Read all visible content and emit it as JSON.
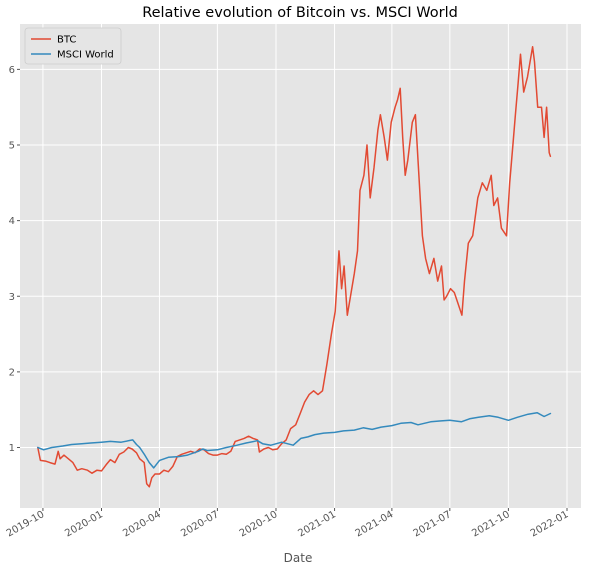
{
  "chart_data": {
    "type": "line",
    "title": "Relative evolution of Bitcoin vs. MSCI World",
    "xlabel": "Date",
    "ylabel": "",
    "x_type": "date",
    "xlim": [
      "2019-08-26",
      "2022-01-23"
    ],
    "ylim": [
      0.2,
      6.6
    ],
    "grid": true,
    "legend_position": "top-left",
    "x_ticks": [
      {
        "date": "2019-10-01",
        "label": "2019-10"
      },
      {
        "date": "2020-01-01",
        "label": "2020-01"
      },
      {
        "date": "2020-04-01",
        "label": "2020-04"
      },
      {
        "date": "2020-07-01",
        "label": "2020-07"
      },
      {
        "date": "2020-10-01",
        "label": "2020-10"
      },
      {
        "date": "2021-01-01",
        "label": "2021-01"
      },
      {
        "date": "2021-04-01",
        "label": "2021-04"
      },
      {
        "date": "2021-07-01",
        "label": "2021-07"
      },
      {
        "date": "2021-10-01",
        "label": "2021-10"
      },
      {
        "date": "2022-01-01",
        "label": "2022-01"
      }
    ],
    "y_ticks": [
      1,
      2,
      3,
      4,
      5,
      6
    ],
    "series": [
      {
        "name": "BTC",
        "color": "#E24A33",
        "points": [
          [
            "2019-09-23",
            1.0
          ],
          [
            "2019-09-27",
            0.83
          ],
          [
            "2019-10-05",
            0.82
          ],
          [
            "2019-10-12",
            0.8
          ],
          [
            "2019-10-20",
            0.78
          ],
          [
            "2019-10-25",
            0.95
          ],
          [
            "2019-10-28",
            0.85
          ],
          [
            "2019-11-03",
            0.9
          ],
          [
            "2019-11-10",
            0.85
          ],
          [
            "2019-11-17",
            0.8
          ],
          [
            "2019-11-24",
            0.7
          ],
          [
            "2019-12-01",
            0.72
          ],
          [
            "2019-12-10",
            0.7
          ],
          [
            "2019-12-17",
            0.66
          ],
          [
            "2019-12-25",
            0.7
          ],
          [
            "2020-01-01",
            0.69
          ],
          [
            "2020-01-08",
            0.77
          ],
          [
            "2020-01-15",
            0.84
          ],
          [
            "2020-01-22",
            0.8
          ],
          [
            "2020-01-29",
            0.91
          ],
          [
            "2020-02-05",
            0.94
          ],
          [
            "2020-02-12",
            1.0
          ],
          [
            "2020-02-18",
            0.98
          ],
          [
            "2020-02-25",
            0.93
          ],
          [
            "2020-03-01",
            0.85
          ],
          [
            "2020-03-08",
            0.8
          ],
          [
            "2020-03-12",
            0.52
          ],
          [
            "2020-03-16",
            0.48
          ],
          [
            "2020-03-20",
            0.6
          ],
          [
            "2020-03-25",
            0.65
          ],
          [
            "2020-04-01",
            0.65
          ],
          [
            "2020-04-08",
            0.7
          ],
          [
            "2020-04-15",
            0.68
          ],
          [
            "2020-04-22",
            0.75
          ],
          [
            "2020-04-29",
            0.88
          ],
          [
            "2020-05-06",
            0.91
          ],
          [
            "2020-05-13",
            0.93
          ],
          [
            "2020-05-20",
            0.95
          ],
          [
            "2020-05-27",
            0.93
          ],
          [
            "2020-06-03",
            0.98
          ],
          [
            "2020-06-10",
            0.97
          ],
          [
            "2020-06-17",
            0.92
          ],
          [
            "2020-06-24",
            0.9
          ],
          [
            "2020-07-01",
            0.9
          ],
          [
            "2020-07-08",
            0.92
          ],
          [
            "2020-07-15",
            0.91
          ],
          [
            "2020-07-22",
            0.95
          ],
          [
            "2020-07-29",
            1.08
          ],
          [
            "2020-08-05",
            1.1
          ],
          [
            "2020-08-12",
            1.12
          ],
          [
            "2020-08-19",
            1.15
          ],
          [
            "2020-08-26",
            1.12
          ],
          [
            "2020-09-02",
            1.1
          ],
          [
            "2020-09-05",
            0.94
          ],
          [
            "2020-09-12",
            0.98
          ],
          [
            "2020-09-19",
            1.0
          ],
          [
            "2020-09-26",
            0.97
          ],
          [
            "2020-10-03",
            0.98
          ],
          [
            "2020-10-10",
            1.05
          ],
          [
            "2020-10-17",
            1.1
          ],
          [
            "2020-10-24",
            1.25
          ],
          [
            "2020-11-01",
            1.3
          ],
          [
            "2020-11-08",
            1.45
          ],
          [
            "2020-11-15",
            1.6
          ],
          [
            "2020-11-22",
            1.7
          ],
          [
            "2020-11-29",
            1.75
          ],
          [
            "2020-12-06",
            1.7
          ],
          [
            "2020-12-13",
            1.75
          ],
          [
            "2020-12-20",
            2.1
          ],
          [
            "2020-12-27",
            2.5
          ],
          [
            "2021-01-02",
            2.8
          ],
          [
            "2021-01-08",
            3.6
          ],
          [
            "2021-01-12",
            3.1
          ],
          [
            "2021-01-16",
            3.4
          ],
          [
            "2021-01-21",
            2.75
          ],
          [
            "2021-01-26",
            3.0
          ],
          [
            "2021-02-01",
            3.3
          ],
          [
            "2021-02-06",
            3.6
          ],
          [
            "2021-02-10",
            4.4
          ],
          [
            "2021-02-16",
            4.6
          ],
          [
            "2021-02-21",
            5.0
          ],
          [
            "2021-02-26",
            4.3
          ],
          [
            "2021-03-04",
            4.7
          ],
          [
            "2021-03-10",
            5.2
          ],
          [
            "2021-03-14",
            5.4
          ],
          [
            "2021-03-20",
            5.1
          ],
          [
            "2021-03-25",
            4.8
          ],
          [
            "2021-03-31",
            5.3
          ],
          [
            "2021-04-06",
            5.5
          ],
          [
            "2021-04-10",
            5.6
          ],
          [
            "2021-04-14",
            5.75
          ],
          [
            "2021-04-18",
            5.1
          ],
          [
            "2021-04-22",
            4.6
          ],
          [
            "2021-04-26",
            4.8
          ],
          [
            "2021-05-03",
            5.3
          ],
          [
            "2021-05-08",
            5.4
          ],
          [
            "2021-05-12",
            4.8
          ],
          [
            "2021-05-19",
            3.8
          ],
          [
            "2021-05-24",
            3.5
          ],
          [
            "2021-05-30",
            3.3
          ],
          [
            "2021-06-06",
            3.5
          ],
          [
            "2021-06-12",
            3.2
          ],
          [
            "2021-06-18",
            3.4
          ],
          [
            "2021-06-22",
            2.95
          ],
          [
            "2021-06-26",
            3.0
          ],
          [
            "2021-07-02",
            3.1
          ],
          [
            "2021-07-08",
            3.05
          ],
          [
            "2021-07-14",
            2.9
          ],
          [
            "2021-07-20",
            2.75
          ],
          [
            "2021-07-24",
            3.2
          ],
          [
            "2021-07-30",
            3.7
          ],
          [
            "2021-08-06",
            3.8
          ],
          [
            "2021-08-14",
            4.3
          ],
          [
            "2021-08-21",
            4.5
          ],
          [
            "2021-08-28",
            4.4
          ],
          [
            "2021-09-04",
            4.6
          ],
          [
            "2021-09-08",
            4.2
          ],
          [
            "2021-09-14",
            4.3
          ],
          [
            "2021-09-20",
            3.9
          ],
          [
            "2021-09-28",
            3.8
          ],
          [
            "2021-10-03",
            4.5
          ],
          [
            "2021-10-08",
            5.0
          ],
          [
            "2021-10-12",
            5.4
          ],
          [
            "2021-10-16",
            5.8
          ],
          [
            "2021-10-20",
            6.2
          ],
          [
            "2021-10-25",
            5.7
          ],
          [
            "2021-10-31",
            5.9
          ],
          [
            "2021-11-08",
            6.3
          ],
          [
            "2021-11-11",
            6.1
          ],
          [
            "2021-11-16",
            5.5
          ],
          [
            "2021-11-22",
            5.5
          ],
          [
            "2021-11-26",
            5.1
          ],
          [
            "2021-11-30",
            5.5
          ],
          [
            "2021-12-04",
            4.9
          ],
          [
            "2021-12-06",
            4.85
          ]
        ]
      },
      {
        "name": "MSCI World",
        "color": "#348ABD",
        "points": [
          [
            "2019-09-23",
            1.0
          ],
          [
            "2019-10-02",
            0.97
          ],
          [
            "2019-10-15",
            1.0
          ],
          [
            "2019-11-01",
            1.02
          ],
          [
            "2019-11-15",
            1.04
          ],
          [
            "2019-12-01",
            1.05
          ],
          [
            "2019-12-15",
            1.06
          ],
          [
            "2020-01-01",
            1.07
          ],
          [
            "2020-01-15",
            1.08
          ],
          [
            "2020-02-01",
            1.07
          ],
          [
            "2020-02-19",
            1.1
          ],
          [
            "2020-02-25",
            1.04
          ],
          [
            "2020-03-01",
            1.0
          ],
          [
            "2020-03-09",
            0.9
          ],
          [
            "2020-03-16",
            0.8
          ],
          [
            "2020-03-23",
            0.73
          ],
          [
            "2020-04-01",
            0.83
          ],
          [
            "2020-04-15",
            0.87
          ],
          [
            "2020-05-01",
            0.88
          ],
          [
            "2020-05-15",
            0.9
          ],
          [
            "2020-06-01",
            0.95
          ],
          [
            "2020-06-08",
            0.98
          ],
          [
            "2020-06-15",
            0.96
          ],
          [
            "2020-07-01",
            0.97
          ],
          [
            "2020-07-15",
            1.0
          ],
          [
            "2020-08-01",
            1.03
          ],
          [
            "2020-08-15",
            1.06
          ],
          [
            "2020-09-02",
            1.09
          ],
          [
            "2020-09-10",
            1.05
          ],
          [
            "2020-09-23",
            1.03
          ],
          [
            "2020-10-10",
            1.07
          ],
          [
            "2020-10-28",
            1.03
          ],
          [
            "2020-11-09",
            1.12
          ],
          [
            "2020-11-20",
            1.14
          ],
          [
            "2020-12-01",
            1.17
          ],
          [
            "2020-12-15",
            1.19
          ],
          [
            "2021-01-01",
            1.2
          ],
          [
            "2021-01-15",
            1.22
          ],
          [
            "2021-02-01",
            1.23
          ],
          [
            "2021-02-15",
            1.26
          ],
          [
            "2021-03-01",
            1.24
          ],
          [
            "2021-03-15",
            1.27
          ],
          [
            "2021-04-01",
            1.29
          ],
          [
            "2021-04-15",
            1.32
          ],
          [
            "2021-05-01",
            1.33
          ],
          [
            "2021-05-12",
            1.3
          ],
          [
            "2021-06-01",
            1.34
          ],
          [
            "2021-06-15",
            1.35
          ],
          [
            "2021-07-01",
            1.36
          ],
          [
            "2021-07-19",
            1.34
          ],
          [
            "2021-08-01",
            1.38
          ],
          [
            "2021-08-15",
            1.4
          ],
          [
            "2021-09-01",
            1.42
          ],
          [
            "2021-09-15",
            1.4
          ],
          [
            "2021-10-01",
            1.36
          ],
          [
            "2021-10-15",
            1.4
          ],
          [
            "2021-11-01",
            1.44
          ],
          [
            "2021-11-15",
            1.46
          ],
          [
            "2021-11-26",
            1.41
          ],
          [
            "2021-12-01",
            1.43
          ],
          [
            "2021-12-06",
            1.45
          ]
        ]
      }
    ]
  }
}
